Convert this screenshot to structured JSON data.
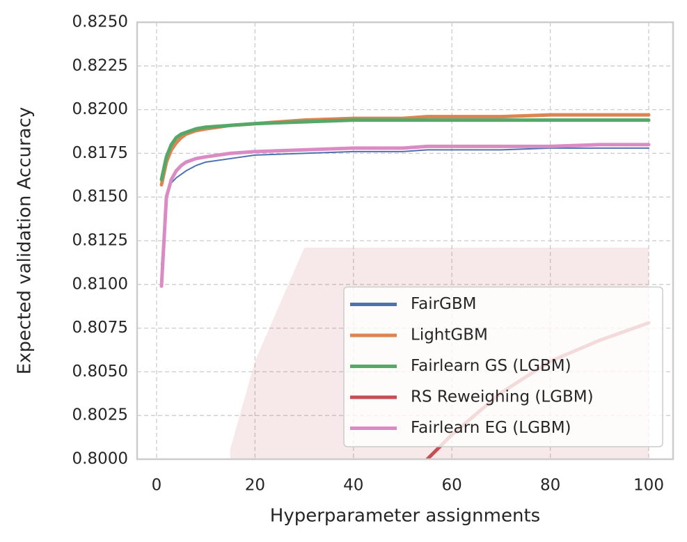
{
  "chart_data": {
    "type": "line",
    "xlabel": "Hyperparameter assignments",
    "ylabel": "Expected validation Accuracy",
    "x": [
      1,
      2,
      3,
      4,
      5,
      6,
      8,
      10,
      15,
      20,
      30,
      40,
      50,
      55,
      60,
      70,
      80,
      90,
      100
    ],
    "series": [
      {
        "name": "FairGBM",
        "color": "#4c72b0",
        "width": 2,
        "values": [
          0.8111,
          0.815,
          0.8158,
          0.8161,
          0.8163,
          0.8165,
          0.8168,
          0.817,
          0.8172,
          0.8174,
          0.8175,
          0.8176,
          0.8176,
          0.8177,
          0.8177,
          0.8177,
          0.8178,
          0.8178,
          0.8178
        ]
      },
      {
        "name": "LightGBM",
        "color": "#dd8452",
        "width": 5,
        "values": [
          0.8157,
          0.817,
          0.8177,
          0.8181,
          0.8184,
          0.8186,
          0.8188,
          0.8189,
          0.8191,
          0.8192,
          0.8194,
          0.8195,
          0.8195,
          0.8196,
          0.8196,
          0.8196,
          0.8197,
          0.8197,
          0.8197
        ]
      },
      {
        "name": "Fairlearn GS (LGBM)",
        "color": "#55a868",
        "width": 5,
        "values": [
          0.816,
          0.8173,
          0.818,
          0.8184,
          0.8186,
          0.8187,
          0.8189,
          0.819,
          0.8191,
          0.8192,
          0.8193,
          0.8194,
          0.8194,
          0.8194,
          0.8194,
          0.8194,
          0.8194,
          0.8194,
          0.8194
        ]
      },
      {
        "name": "RS Reweighing (LGBM)",
        "color": "#c44e52",
        "width": 5,
        "values": [
          null,
          null,
          null,
          null,
          null,
          null,
          null,
          null,
          null,
          null,
          null,
          null,
          null,
          0.8,
          0.8014,
          0.8038,
          0.8056,
          0.8068,
          0.8078
        ],
        "upper": [
          null,
          null,
          null,
          null,
          null,
          null,
          null,
          null,
          0.8006,
          0.8056,
          0.8121,
          0.8121,
          0.8121,
          0.8121,
          0.8121,
          0.8121,
          0.8121,
          0.8121,
          0.8121
        ]
      },
      {
        "name": "Fairlearn EG (LGBM)",
        "color": "#da8bc3",
        "width": 5,
        "values": [
          0.8099,
          0.815,
          0.816,
          0.8165,
          0.8168,
          0.817,
          0.8172,
          0.8173,
          0.8175,
          0.8176,
          0.8177,
          0.8178,
          0.8178,
          0.8179,
          0.8179,
          0.8179,
          0.8179,
          0.818,
          0.818
        ]
      }
    ],
    "xlim": [
      -3.95,
      104.95
    ],
    "xticks": [
      0,
      20,
      40,
      60,
      80,
      100
    ],
    "ylim": [
      0.8,
      0.825
    ],
    "yticks": [
      {
        "value": 0.8,
        "label": "0.8000"
      },
      {
        "value": 0.8025,
        "label": "0.8025"
      },
      {
        "value": 0.805,
        "label": "0.8050"
      },
      {
        "value": 0.8075,
        "label": "0.8075"
      },
      {
        "value": 0.81,
        "label": "0.8100"
      },
      {
        "value": 0.8125,
        "label": "0.8125"
      },
      {
        "value": 0.815,
        "label": "0.8150"
      },
      {
        "value": 0.8175,
        "label": "0.8175"
      },
      {
        "value": 0.82,
        "label": "0.8200"
      },
      {
        "value": 0.8225,
        "label": "0.8225"
      },
      {
        "value": 0.825,
        "label": "0.8250"
      }
    ],
    "grid": true,
    "legend": "lower right"
  }
}
